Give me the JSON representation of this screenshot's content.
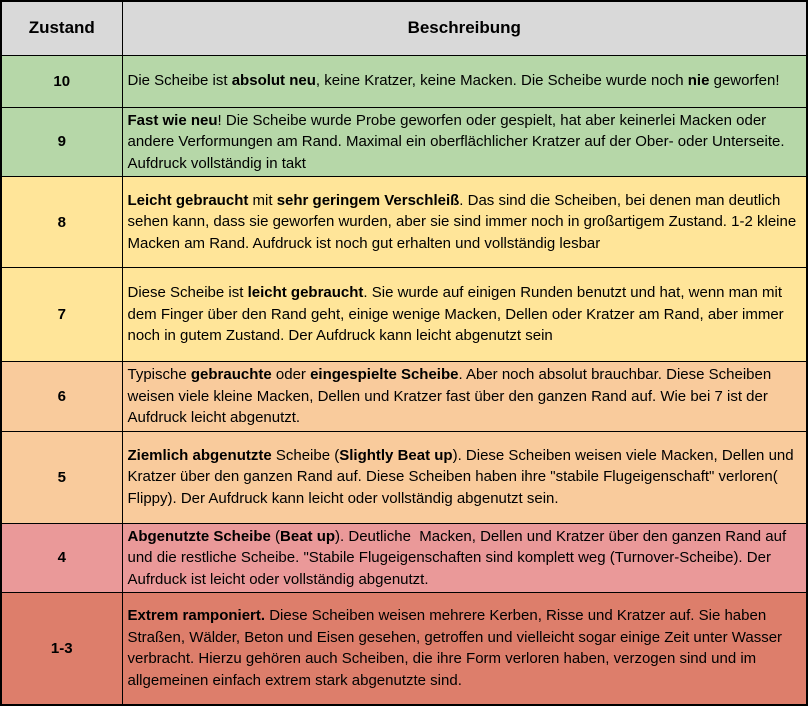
{
  "table": {
    "header": {
      "col1": "Zustand",
      "col2": "Beschreibung"
    },
    "header_bg": "#d9d9d9",
    "border_color": "#000000",
    "rows": [
      {
        "zustand": "10",
        "color": "#b6d7a8",
        "description": [
          {
            "text": "Die Scheibe ist ",
            "bold": false
          },
          {
            "text": "absolut neu",
            "bold": true
          },
          {
            "text": ", keine Kratzer, keine Macken. Die Scheibe wurde noch ",
            "bold": false
          },
          {
            "text": "nie",
            "bold": true
          },
          {
            "text": " geworfen!",
            "bold": false
          }
        ]
      },
      {
        "zustand": "9",
        "color": "#b6d7a8",
        "description": [
          {
            "text": "Fast wie neu",
            "bold": true
          },
          {
            "text": "! Die Scheibe wurde Probe geworfen oder gespielt, hat aber keinerlei Macken oder andere Verformungen am Rand. Maximal ein oberflächlicher Kratzer auf der Ober- oder Unterseite. Aufdruck vollständig in takt",
            "bold": false
          }
        ]
      },
      {
        "zustand": "8",
        "color": "#ffe599",
        "description": [
          {
            "text": "Leicht gebraucht",
            "bold": true
          },
          {
            "text": " mit ",
            "bold": false
          },
          {
            "text": "sehr geringem Verschleiß",
            "bold": true
          },
          {
            "text": ". Das sind die Scheiben, bei denen man deutlich sehen kann, dass sie geworfen wurden, aber sie sind immer noch in großartigem Zustand. 1-2 kleine Macken am Rand. Aufdruck ist noch gut erhalten und vollständig lesbar",
            "bold": false
          }
        ]
      },
      {
        "zustand": "7",
        "color": "#ffe599",
        "description": [
          {
            "text": "Diese Scheibe ist ",
            "bold": false
          },
          {
            "text": "leicht gebraucht",
            "bold": true
          },
          {
            "text": ". Sie wurde auf einigen Runden benutzt und hat, wenn man mit dem Finger über den Rand geht, einige wenige Macken, Dellen oder Kratzer am Rand, aber immer noch in gutem Zustand. Der Aufdruck kann leicht abgenutzt sein",
            "bold": false
          }
        ]
      },
      {
        "zustand": "6",
        "color": "#f9cb9c",
        "description": [
          {
            "text": "Typische ",
            "bold": false
          },
          {
            "text": "gebrauchte",
            "bold": true
          },
          {
            "text": " oder ",
            "bold": false
          },
          {
            "text": "eingespielte Scheibe",
            "bold": true
          },
          {
            "text": ". Aber noch absolut brauchbar. Diese Scheiben weisen viele kleine Macken, Dellen und Kratzer fast über den ganzen Rand auf. Wie bei 7 ist der Aufdruck leicht abgenutzt.",
            "bold": false
          }
        ]
      },
      {
        "zustand": "5",
        "color": "#f9cb9c",
        "description": [
          {
            "text": "Ziemlich abgenutzte",
            "bold": true
          },
          {
            "text": " Scheibe (",
            "bold": false
          },
          {
            "text": "Slightly Beat up",
            "bold": true
          },
          {
            "text": "). Diese Scheiben weisen viele Macken, Dellen und Kratzer über den ganzen Rand auf. Diese Scheiben haben ihre \"stabile Flugeigenschaft\" verloren( Flippy). Der Aufdruck kann leicht oder vollständig abgenutzt sein.",
            "bold": false
          }
        ]
      },
      {
        "zustand": "4",
        "color": "#ea9999",
        "description": [
          {
            "text": "Abgenutzte Scheibe",
            "bold": true
          },
          {
            "text": " (",
            "bold": false
          },
          {
            "text": "Beat up",
            "bold": true
          },
          {
            "text": "). Deutliche  Macken, Dellen und Kratzer über den ganzen Rand auf und die restliche Scheibe. \"Stabile Flugeigenschaften sind komplett weg (Turnover-Scheibe). Der Aufrduck ist leicht oder vollständig abgenutzt.",
            "bold": false
          }
        ]
      },
      {
        "zustand": "1-3",
        "color": "#dd7e6b",
        "description": [
          {
            "text": "Extrem ramponiert.",
            "bold": true
          },
          {
            "text": " Diese Scheiben weisen mehrere Kerben, Risse und Kratzer auf. Sie haben Straßen, Wälder, Beton und Eisen gesehen, getroffen und vielleicht sogar einige Zeit unter Wasser verbracht. Hierzu gehören auch Scheiben, die ihre Form verloren haben, verzogen sind und im allgemeinen einfach extrem stark abgenutzte sind.",
            "bold": false
          }
        ]
      }
    ]
  }
}
